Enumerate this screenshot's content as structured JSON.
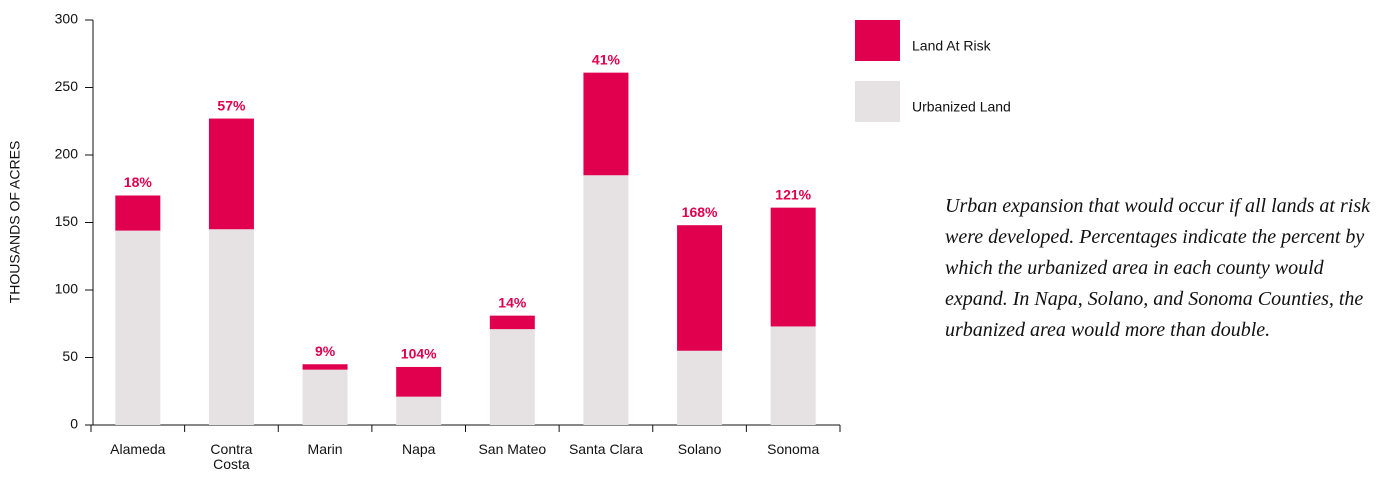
{
  "chart_data": {
    "type": "stacked_bar",
    "y_label": "THOUSANDS OF ACRES",
    "categories": [
      "Alameda",
      "Contra Costa",
      "Marin",
      "Napa",
      "San Mateo",
      "Santa Clara",
      "Solano",
      "Sonoma"
    ],
    "series": [
      {
        "name": "Urbanized Land",
        "color": "#e6e2e3",
        "values": [
          144,
          145,
          41,
          21,
          71,
          185,
          55,
          73
        ]
      },
      {
        "name": "Land At Risk",
        "color": "#e0004d",
        "values": [
          26,
          82,
          4,
          22,
          10,
          76,
          93,
          88
        ]
      }
    ],
    "bar_labels": [
      "18%",
      "57%",
      "9%",
      "104%",
      "14%",
      "41%",
      "168%",
      "121%"
    ],
    "ylim": [
      0,
      300
    ],
    "yticks": [
      0,
      50,
      100,
      150,
      200,
      250,
      300
    ],
    "annotation": "Urban expansion that would occur if all lands at risk were developed. Percentages indicate the percent by which the urbanized area in each county would expand. In Napa, Solano, and Sonoma Counties, the urbanized area would more than double."
  }
}
